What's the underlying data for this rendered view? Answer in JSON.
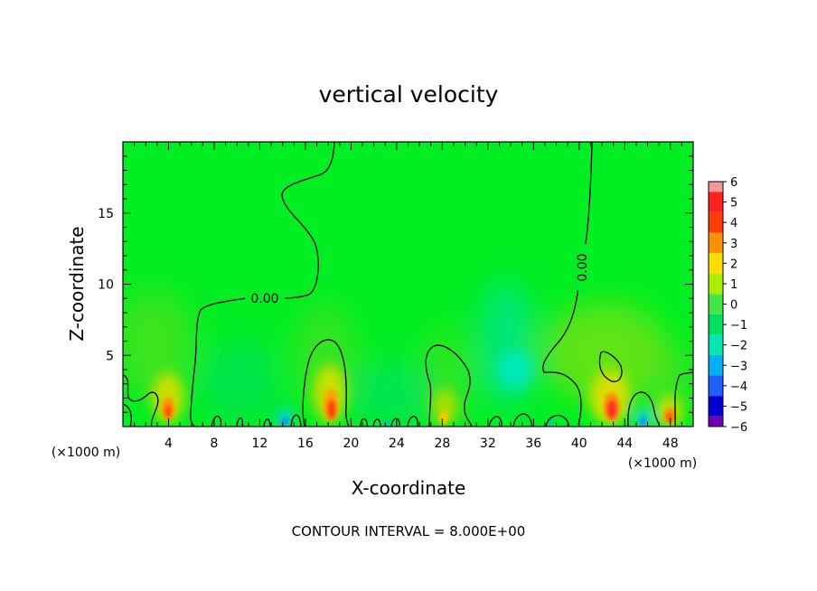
{
  "chart_data": {
    "type": "heatmap",
    "title": "vertical velocity",
    "xlabel": "X-coordinate",
    "ylabel": "Z-coordinate",
    "x_unit_left": "(×1000 m)",
    "x_unit_right": "(×1000 m)",
    "xlim": [
      0,
      50
    ],
    "ylim": [
      0,
      20
    ],
    "x_ticks": [
      4,
      8,
      12,
      16,
      20,
      24,
      28,
      32,
      36,
      40,
      44,
      48
    ],
    "y_ticks": [
      5,
      10,
      15
    ],
    "contour_label": "0.00",
    "footer": "CONTOUR INTERVAL = 8.000E+00",
    "colorbar": {
      "levels": [
        6,
        5,
        4,
        3,
        2,
        1,
        0,
        -1,
        -2,
        -3,
        -4,
        -5,
        -6
      ],
      "labels": [
        "6",
        "5",
        "4",
        "3",
        "2",
        "1",
        "0",
        "−1",
        "−2",
        "−3",
        "−4",
        "−5",
        "−6"
      ],
      "colors": [
        "#f09a9a",
        "#ff2020",
        "#ff4000",
        "#ff9000",
        "#ffdd00",
        "#a8f000",
        "#44e844",
        "#00e060",
        "#00e8b0",
        "#00b0f0",
        "#2060ff",
        "#0000d0",
        "#7000b0"
      ]
    },
    "background_color": "#00ee22",
    "features": [
      {
        "x": 4.0,
        "z": 1.2,
        "value": 5,
        "kind": "updraft"
      },
      {
        "x": 18.2,
        "z": 1.4,
        "value": 5,
        "kind": "updraft"
      },
      {
        "x": 28.5,
        "z": 0.8,
        "value": 2,
        "kind": "updraft"
      },
      {
        "x": 42.8,
        "z": 1.3,
        "value": 5,
        "kind": "updraft"
      },
      {
        "x": 47.8,
        "z": 0.8,
        "value": 4,
        "kind": "updraft"
      },
      {
        "x": 14.0,
        "z": 0.4,
        "value": -3,
        "kind": "downdraft"
      },
      {
        "x": 45.5,
        "z": 0.4,
        "value": -3,
        "kind": "downdraft"
      },
      {
        "x": 33.0,
        "z": 4.0,
        "value": -1.5,
        "kind": "downdraft"
      }
    ]
  }
}
